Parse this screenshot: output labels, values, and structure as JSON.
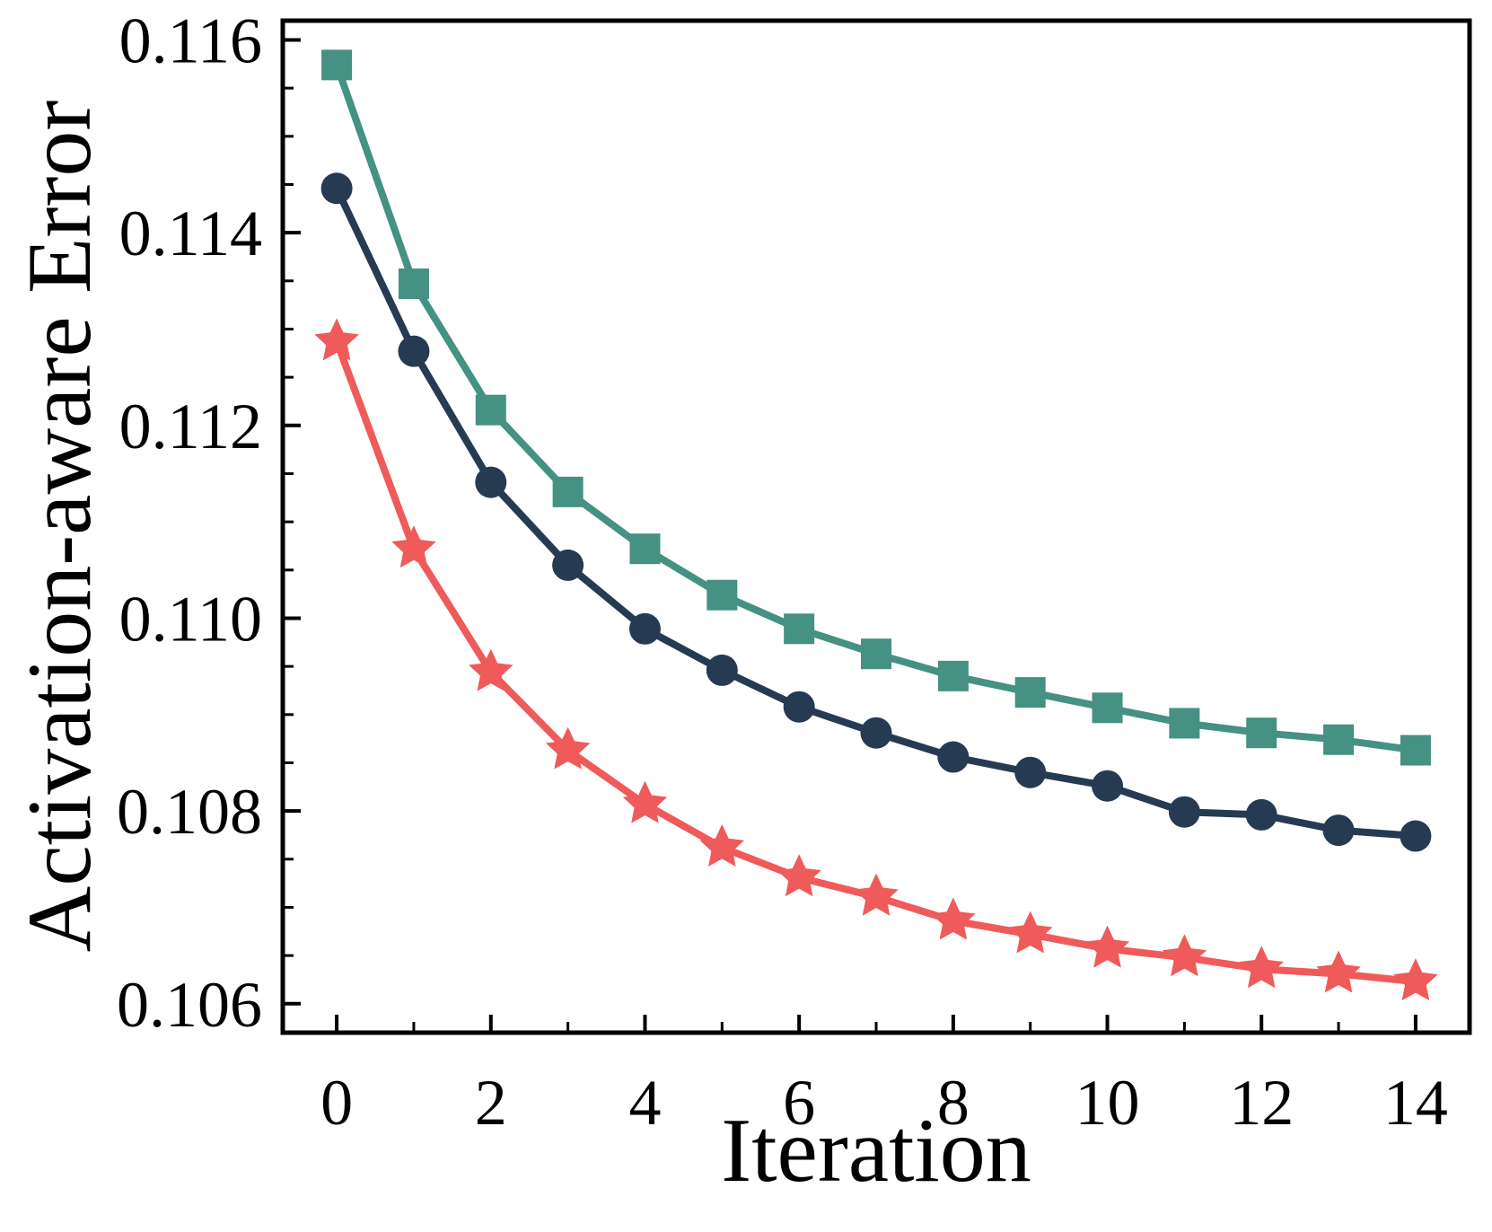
{
  "figure": {
    "background": "#ffffff",
    "text_color": "#000000",
    "spine_color": "#000000"
  },
  "chart_data": {
    "type": "line",
    "title": "",
    "xlabel": "Iteration",
    "ylabel": "Activation-aware Error",
    "grid": false,
    "legend_position": "none",
    "xlim": [
      -0.7,
      14.7
    ],
    "ylim": [
      0.1057,
      0.1162
    ],
    "x": [
      0,
      1,
      2,
      3,
      4,
      5,
      6,
      7,
      8,
      9,
      10,
      11,
      12,
      13,
      14
    ],
    "x_major_ticks": [
      0,
      2,
      4,
      6,
      8,
      10,
      12,
      14
    ],
    "x_major_tick_labels": [
      "0",
      "2",
      "4",
      "6",
      "8",
      "10",
      "12",
      "14"
    ],
    "x_minor_ticks": [
      1,
      3,
      5,
      7,
      9,
      11,
      13
    ],
    "y_major_ticks": [
      0.106,
      0.108,
      0.11,
      0.112,
      0.114,
      0.116
    ],
    "y_major_tick_labels": [
      "0.106",
      "0.108",
      "0.110",
      "0.112",
      "0.114",
      "0.116"
    ],
    "y_minor_step": 0.0005,
    "series": [
      {
        "name": "green-squares",
        "marker": "square",
        "color": "#459183",
        "values": [
          0.11574,
          0.11347,
          0.11216,
          0.11131,
          0.11072,
          0.11024,
          0.10989,
          0.10963,
          0.1094,
          0.10923,
          0.10907,
          0.10891,
          0.10881,
          0.10874,
          0.10863
        ]
      },
      {
        "name": "navy-circles",
        "marker": "circle",
        "color": "#263A52",
        "values": [
          0.11446,
          0.11277,
          0.11141,
          0.11055,
          0.10989,
          0.10946,
          0.10908,
          0.10881,
          0.10856,
          0.1084,
          0.10826,
          0.10799,
          0.10796,
          0.1078,
          0.10774
        ]
      },
      {
        "name": "red-stars",
        "marker": "star",
        "color": "#EF5A5A",
        "values": [
          0.11287,
          0.11072,
          0.10944,
          0.10863,
          0.10807,
          0.10762,
          0.10731,
          0.10711,
          0.10686,
          0.10672,
          0.10657,
          0.10648,
          0.10636,
          0.10631,
          0.10623
        ]
      }
    ]
  }
}
